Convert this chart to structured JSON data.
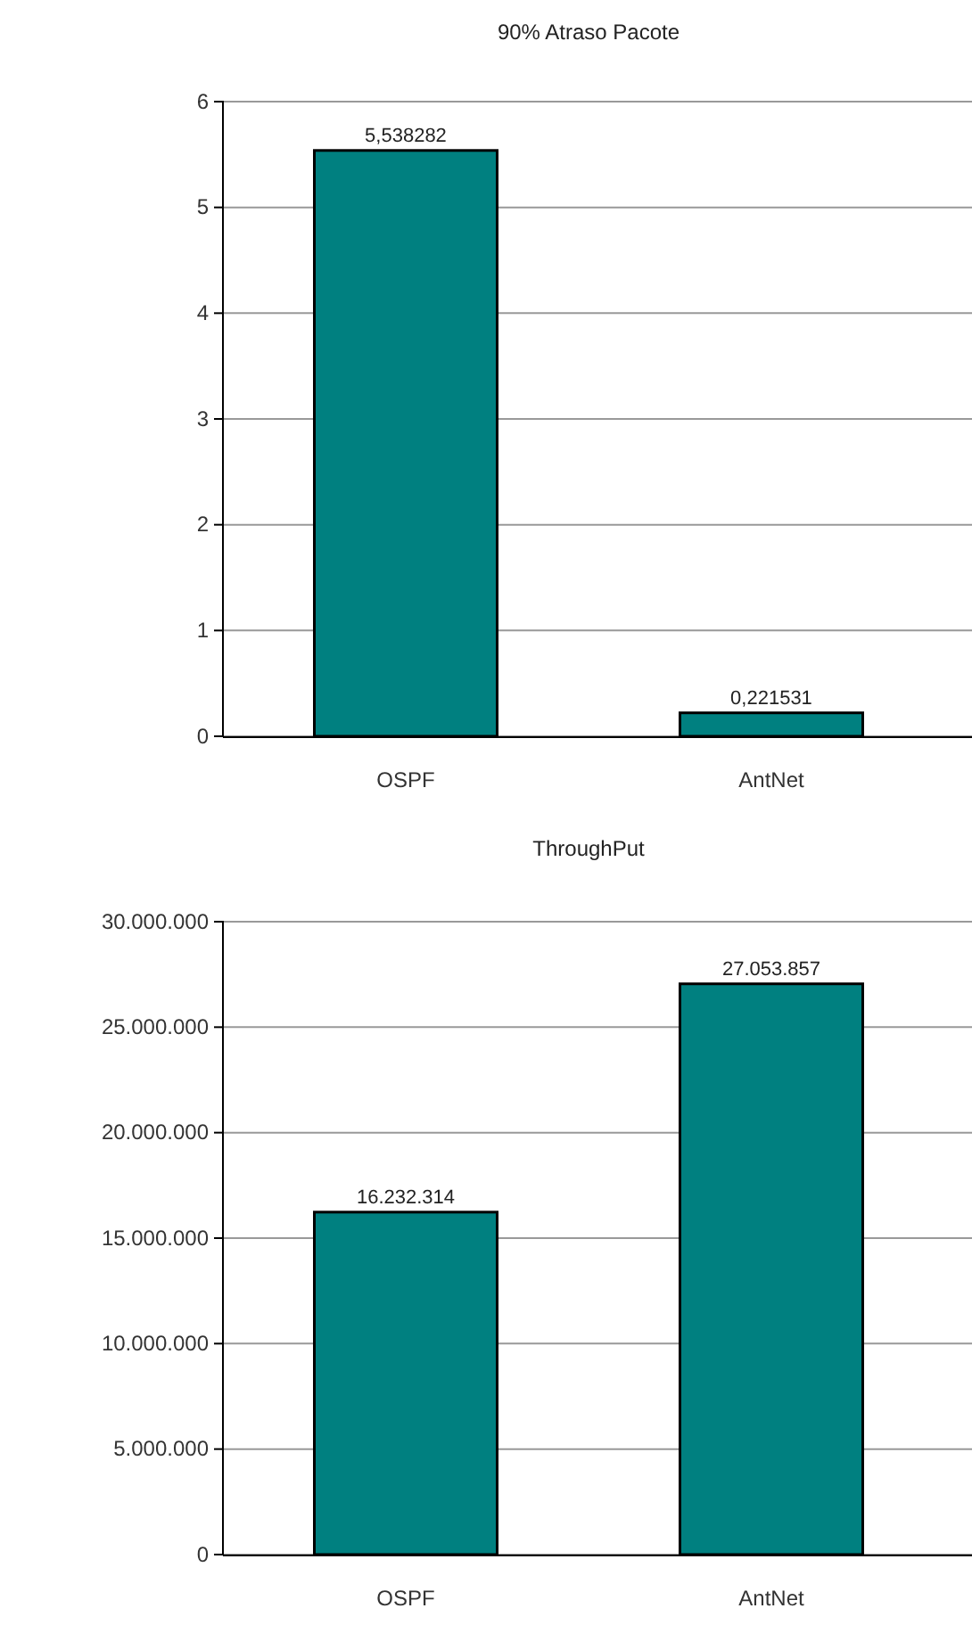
{
  "chart_data": [
    {
      "type": "bar",
      "title": "90% Atraso Pacote",
      "categories": [
        "OSPF",
        "AntNet"
      ],
      "values": [
        5.538282,
        0.221531
      ],
      "value_labels": [
        "5,538282",
        "0,221531"
      ],
      "color": "#008080",
      "ylim": [
        0,
        6
      ],
      "yticks": [
        0,
        1,
        2,
        3,
        4,
        5,
        6
      ],
      "grid": "y"
    },
    {
      "type": "bar",
      "title": "ThroughPut",
      "categories": [
        "OSPF",
        "AntNet"
      ],
      "values": [
        16232314,
        27053857
      ],
      "value_labels": [
        "16.232.314",
        "27.053.857"
      ],
      "color": "#008080",
      "ylim": [
        0,
        30000000
      ],
      "yticks": [
        {
          "value": 0,
          "label": "0"
        },
        {
          "value": 5000000,
          "label": "5.000.000"
        },
        {
          "value": 10000000,
          "label": "10.000.000"
        },
        {
          "value": 15000000,
          "label": "15.000.000"
        },
        {
          "value": 20000000,
          "label": "20.000.000"
        },
        {
          "value": 25000000,
          "label": "25.000.000"
        },
        {
          "value": 30000000,
          "label": "30.000.000"
        }
      ],
      "grid": "y"
    }
  ]
}
